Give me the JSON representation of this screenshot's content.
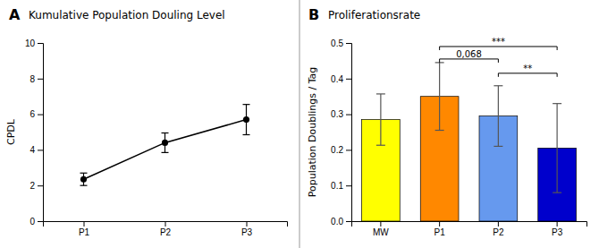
{
  "chart_data": [
    {
      "type": "line",
      "panel": "A",
      "title": "Kumulative Population Douling Level",
      "ylabel": "CPDL",
      "x": [
        1,
        2,
        3
      ],
      "xlim": [
        0.5,
        3.5
      ],
      "xticks": [
        {
          "value": 1,
          "label": "P1"
        },
        {
          "value": 2,
          "label": "P2"
        },
        {
          "value": 3,
          "label": "P3"
        }
      ],
      "values": [
        2.35,
        4.4,
        5.7
      ],
      "errors": [
        0.35,
        0.55,
        0.85
      ],
      "color": "#000000",
      "marker": "circle",
      "line_style": "solid",
      "ylim": [
        0,
        10
      ],
      "yticks": [
        0,
        2,
        4,
        6,
        8,
        10
      ]
    },
    {
      "type": "bar",
      "panel": "B",
      "title": "Proliferationsrate",
      "ylabel": "Population Doublings / Tag",
      "categories": [
        "MW",
        "P1",
        "P2",
        "P3"
      ],
      "values": [
        0.285,
        0.35,
        0.295,
        0.205
      ],
      "errors": [
        0.072,
        0.095,
        0.085,
        0.125
      ],
      "colors": [
        "#FFFF00",
        "#FF8800",
        "#6699EE",
        "#0000CC"
      ],
      "ylim": [
        0,
        0.5
      ],
      "yticks": [
        {
          "value": 0.0,
          "label": "0.0"
        },
        0.1,
        0.2,
        0.3,
        0.4,
        0.5
      ],
      "annotations": [
        {
          "from": "P1",
          "to": "P2",
          "y": 0.455,
          "label": "0,068"
        },
        {
          "from": "P1",
          "to": "P3",
          "y": 0.49,
          "label": "***"
        },
        {
          "from": "P2",
          "to": "P3",
          "y": 0.415,
          "label": "**"
        }
      ]
    }
  ]
}
